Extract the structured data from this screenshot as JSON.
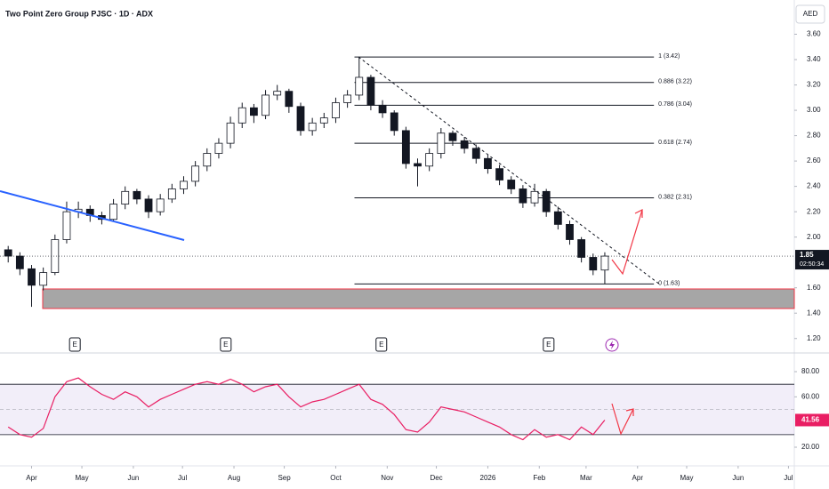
{
  "chart_data": {
    "type": "candlestick",
    "title": "Two Point Zero Group PJSC · 1D · ADX",
    "currency": "AED",
    "x": [
      -2,
      -1,
      0,
      1,
      2,
      3,
      4,
      5,
      6,
      7,
      8,
      9,
      10,
      11,
      12,
      13,
      14,
      15,
      16,
      17,
      18,
      19,
      20,
      21,
      22,
      23,
      24,
      25,
      26,
      27,
      28,
      29,
      30,
      31,
      32,
      33,
      34,
      35,
      36,
      37,
      38,
      39,
      40,
      41,
      42,
      43,
      44,
      45,
      46,
      47,
      48,
      49
    ],
    "ohlc": [
      [
        1.9,
        1.93,
        1.8,
        1.85
      ],
      [
        1.85,
        1.88,
        1.7,
        1.75
      ],
      [
        1.75,
        1.78,
        1.45,
        1.62
      ],
      [
        1.62,
        1.76,
        1.58,
        1.72
      ],
      [
        1.72,
        2.02,
        1.7,
        1.98
      ],
      [
        1.98,
        2.28,
        1.95,
        2.2
      ],
      [
        2.2,
        2.28,
        2.15,
        2.22
      ],
      [
        2.22,
        2.25,
        2.12,
        2.17
      ],
      [
        2.17,
        2.2,
        2.1,
        2.14
      ],
      [
        2.14,
        2.3,
        2.12,
        2.26
      ],
      [
        2.26,
        2.4,
        2.22,
        2.36
      ],
      [
        2.36,
        2.38,
        2.26,
        2.3
      ],
      [
        2.3,
        2.33,
        2.15,
        2.2
      ],
      [
        2.2,
        2.34,
        2.17,
        2.3
      ],
      [
        2.3,
        2.42,
        2.27,
        2.38
      ],
      [
        2.38,
        2.48,
        2.34,
        2.44
      ],
      [
        2.44,
        2.6,
        2.4,
        2.56
      ],
      [
        2.56,
        2.7,
        2.52,
        2.66
      ],
      [
        2.66,
        2.78,
        2.62,
        2.74
      ],
      [
        2.74,
        2.95,
        2.7,
        2.9
      ],
      [
        2.9,
        3.06,
        2.86,
        3.02
      ],
      [
        3.02,
        3.05,
        2.9,
        2.96
      ],
      [
        2.96,
        3.16,
        2.93,
        3.12
      ],
      [
        3.12,
        3.2,
        3.08,
        3.15
      ],
      [
        3.15,
        3.17,
        2.98,
        3.03
      ],
      [
        3.03,
        3.06,
        2.8,
        2.84
      ],
      [
        2.84,
        2.94,
        2.8,
        2.9
      ],
      [
        2.9,
        2.98,
        2.86,
        2.94
      ],
      [
        2.94,
        3.1,
        2.9,
        3.06
      ],
      [
        3.06,
        3.16,
        3.02,
        3.12
      ],
      [
        3.12,
        3.42,
        3.08,
        3.26
      ],
      [
        3.26,
        3.28,
        3.0,
        3.04
      ],
      [
        3.04,
        3.08,
        2.94,
        2.98
      ],
      [
        2.98,
        3.0,
        2.8,
        2.84
      ],
      [
        2.84,
        2.87,
        2.54,
        2.58
      ],
      [
        2.58,
        2.62,
        2.4,
        2.56
      ],
      [
        2.56,
        2.7,
        2.52,
        2.66
      ],
      [
        2.66,
        2.86,
        2.62,
        2.82
      ],
      [
        2.82,
        2.84,
        2.72,
        2.76
      ],
      [
        2.76,
        2.79,
        2.66,
        2.7
      ],
      [
        2.7,
        2.73,
        2.58,
        2.62
      ],
      [
        2.62,
        2.65,
        2.5,
        2.54
      ],
      [
        2.54,
        2.57,
        2.41,
        2.45
      ],
      [
        2.45,
        2.48,
        2.34,
        2.38
      ],
      [
        2.38,
        2.41,
        2.23,
        2.27
      ],
      [
        2.27,
        2.42,
        2.24,
        2.36
      ],
      [
        2.36,
        2.38,
        2.16,
        2.2
      ],
      [
        2.2,
        2.24,
        2.06,
        2.1
      ],
      [
        2.1,
        2.13,
        1.94,
        1.98
      ],
      [
        1.98,
        2.0,
        1.8,
        1.84
      ],
      [
        1.84,
        1.87,
        1.7,
        1.74
      ],
      [
        1.74,
        1.88,
        1.63,
        1.85
      ]
    ],
    "xlim": [
      -2.7,
      65.2
    ],
    "ylim": [
      1.1,
      3.87
    ],
    "yticks": [
      {
        "value": 3.6,
        "label": "3.60"
      },
      {
        "value": 3.4,
        "label": "3.40"
      },
      {
        "value": 3.2,
        "label": "3.20"
      },
      {
        "value": 3.0,
        "label": "3.00"
      },
      {
        "value": 2.8,
        "label": "2.80"
      },
      {
        "value": 2.6,
        "label": "2.60"
      },
      {
        "value": 2.4,
        "label": "2.40"
      },
      {
        "value": 2.2,
        "label": "2.20"
      },
      {
        "value": 2.0,
        "label": "2.00"
      },
      {
        "value": 1.6,
        "label": "1.60"
      },
      {
        "value": 1.4,
        "label": "1.40"
      },
      {
        "value": 1.2,
        "label": "1.20"
      }
    ],
    "xticks": [
      {
        "value": 0,
        "label": "Apr"
      },
      {
        "value": 4.3,
        "label": "May"
      },
      {
        "value": 8.7,
        "label": "Jun"
      },
      {
        "value": 12.9,
        "label": "Jul"
      },
      {
        "value": 17.3,
        "label": "Aug"
      },
      {
        "value": 21.6,
        "label": "Sep"
      },
      {
        "value": 26,
        "label": "Oct"
      },
      {
        "value": 30.4,
        "label": "Nov"
      },
      {
        "value": 34.6,
        "label": "Dec"
      },
      {
        "value": 39,
        "label": "2026"
      },
      {
        "value": 43.4,
        "label": "Feb"
      },
      {
        "value": 47.4,
        "label": "Mar"
      },
      {
        "value": 51.8,
        "label": "Apr"
      },
      {
        "value": 56,
        "label": "May"
      },
      {
        "value": 60.4,
        "label": "Jun"
      },
      {
        "value": 64.7,
        "label": "Jul"
      }
    ],
    "countdown": "02:50:34",
    "fib_x": [
      27.6,
      53.2
    ],
    "fib_levels": [
      {
        "value": 3.42,
        "label": "1 (3.42)"
      },
      {
        "value": 3.22,
        "label": "0.886 (3.22)"
      },
      {
        "value": 3.04,
        "label": "0.786 (3.04)"
      },
      {
        "value": 2.74,
        "label": "0.618 (2.74)"
      },
      {
        "value": 2.31,
        "label": "0.382 (2.31)"
      },
      {
        "value": 1.63,
        "label": "0 (1.63)"
      }
    ],
    "earnings": [
      {
        "x": 3.7,
        "label": "E"
      },
      {
        "x": 16.6,
        "label": "E"
      },
      {
        "x": 29.9,
        "label": "E"
      },
      {
        "x": 44.2,
        "label": "E"
      }
    ],
    "rsi": {
      "type": "line",
      "color": "#e91e63",
      "values": [
        36,
        30,
        28,
        35,
        60,
        72,
        75,
        68,
        62,
        58,
        64,
        60,
        52,
        58,
        62,
        66,
        70,
        72,
        70,
        74,
        70,
        64,
        68,
        70,
        60,
        52,
        56,
        58,
        62,
        66,
        70,
        58,
        54,
        46,
        34,
        32,
        40,
        52,
        50,
        48,
        44,
        40,
        36,
        30,
        26,
        34,
        28,
        30,
        26,
        36,
        30,
        41.56
      ],
      "ylim": [
        6.6,
        92.7
      ],
      "yticks": [
        {
          "value": 80,
          "label": "80.00"
        },
        {
          "value": 60,
          "label": "60.00"
        },
        {
          "value": 20,
          "label": "20.00"
        }
      ],
      "bands": [
        30,
        70
      ],
      "mid": 50
    }
  }
}
